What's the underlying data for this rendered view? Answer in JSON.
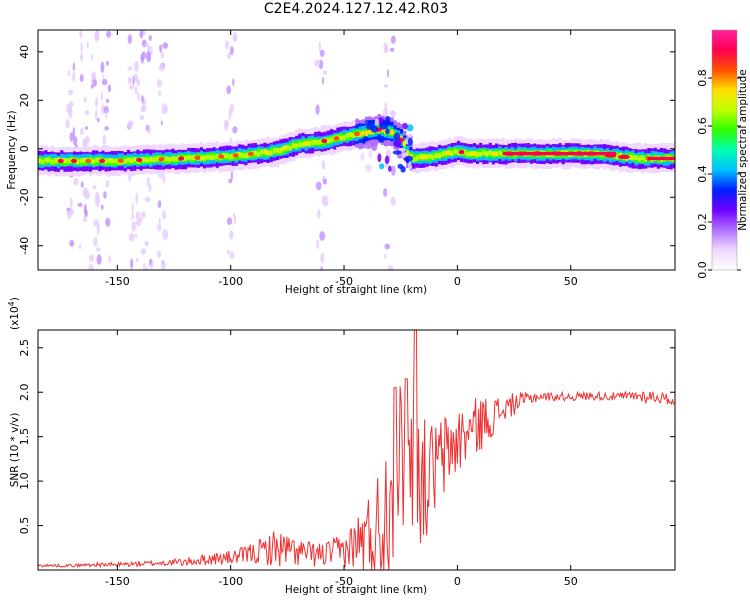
{
  "title": "C2E4.2024.127.12.42.R03",
  "chart_data": [
    {
      "type": "heatmap",
      "xlabel": "Height of straight line (km)",
      "ylabel": "Frequency (Hz)",
      "xlim": [
        -185,
        96
      ],
      "ylim": [
        -50,
        49
      ],
      "xticks": [
        -150,
        -100,
        -50,
        0,
        50
      ],
      "yticks": [
        -40,
        -20,
        0,
        20,
        40
      ],
      "ridge": {
        "x": [
          -185,
          -150,
          -120,
          -100,
          -80,
          -70,
          -60,
          -50,
          -40,
          -35,
          -30,
          -25,
          -22,
          -20,
          -10,
          -5,
          0,
          5,
          10,
          20,
          40,
          60,
          80,
          96
        ],
        "y": [
          -5,
          -5,
          -4,
          -3,
          -1,
          2,
          3,
          5,
          7,
          8,
          7,
          4,
          -3,
          -4,
          -3,
          -2,
          -1,
          -2,
          -2,
          -2,
          -2,
          -2,
          -4,
          -4
        ]
      },
      "colorbar": {
        "label": "Normalized spectral amplitude",
        "ticks": [
          0.0,
          0.2,
          0.4,
          0.6,
          0.8
        ],
        "range": [
          0,
          1
        ],
        "colormap": [
          "#ffffff",
          "#f0d8ff",
          "#b070ff",
          "#7000ff",
          "#0020ff",
          "#00c0ff",
          "#00ffb0",
          "#30ff00",
          "#c0ff00",
          "#ffe000",
          "#ff5000",
          "#ff0050",
          "#ff20a0"
        ]
      }
    },
    {
      "type": "line",
      "xlabel": "Height of straight line (km)",
      "ylabel": "SNR (10 * v/v)",
      "scale_note": "(x10",
      "scale_exp": "4",
      "scale_close": ")",
      "xlim": [
        -185,
        96
      ],
      "ylim": [
        0,
        2.7
      ],
      "xticks": [
        -150,
        -100,
        -50,
        0,
        50
      ],
      "yticks": [
        0.5,
        1.0,
        1.5,
        2.0,
        2.5
      ],
      "color": "#f03030",
      "series": [
        {
          "x": [
            -185,
            -170,
            -160,
            -150,
            -140,
            -130,
            -120,
            -110,
            -100,
            -95,
            -90,
            -85,
            -80,
            -75,
            -70,
            -65,
            -60,
            -55,
            -50,
            -45,
            -40,
            -35,
            -32,
            -30,
            -28,
            -25,
            -22,
            -20,
            -18,
            -15,
            -12,
            -10,
            -5,
            0,
            5,
            10,
            15,
            20,
            25,
            30,
            35,
            40,
            50,
            60,
            70,
            80,
            85,
            90,
            96
          ],
          "y": [
            0.05,
            0.05,
            0.06,
            0.06,
            0.07,
            0.08,
            0.09,
            0.12,
            0.14,
            0.16,
            0.19,
            0.22,
            0.25,
            0.22,
            0.2,
            0.18,
            0.17,
            0.2,
            0.22,
            0.3,
            0.36,
            0.45,
            0.6,
            0.8,
            1.0,
            1.2,
            1.3,
            1.2,
            1.1,
            1.0,
            1.05,
            1.15,
            1.3,
            1.45,
            1.55,
            1.65,
            1.72,
            1.8,
            1.87,
            1.92,
            1.95,
            1.95,
            1.95,
            1.96,
            1.95,
            1.96,
            1.95,
            1.94,
            1.9
          ],
          "noise": [
            0.01,
            0.01,
            0.015,
            0.015,
            0.02,
            0.02,
            0.03,
            0.04,
            0.05,
            0.06,
            0.08,
            0.1,
            0.14,
            0.12,
            0.1,
            0.09,
            0.09,
            0.1,
            0.12,
            0.18,
            0.3,
            0.45,
            0.55,
            0.6,
            0.6,
            0.6,
            0.55,
            0.5,
            0.5,
            0.45,
            0.4,
            0.35,
            0.3,
            0.25,
            0.22,
            0.2,
            0.15,
            0.1,
            0.08,
            0.05,
            0.04,
            0.03,
            0.03,
            0.03,
            0.03,
            0.04,
            0.05,
            0.04,
            0.03
          ]
        }
      ]
    }
  ]
}
